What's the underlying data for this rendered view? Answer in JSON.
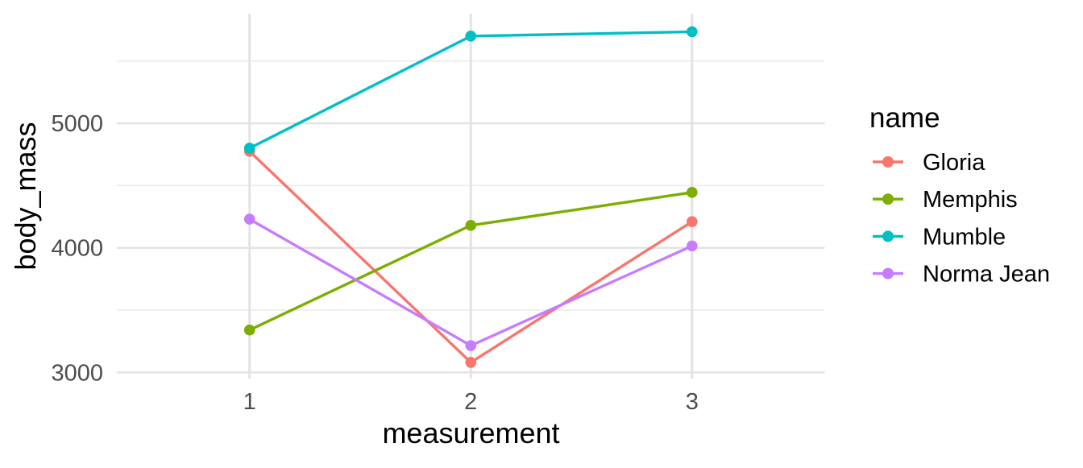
{
  "chart_data": {
    "type": "line",
    "title": "",
    "xlabel": "measurement",
    "ylabel": "body_mass",
    "x_axis": {
      "label": "measurement",
      "categories": [
        "1",
        "2",
        "3"
      ]
    },
    "y_axis": {
      "label": "body_mass",
      "tick_labels": [
        "3000",
        "4000",
        "5000"
      ],
      "tick_values": [
        3000,
        4000,
        5000
      ],
      "minor_tick_values": [
        3500,
        4500,
        5500
      ],
      "ylim": [
        2950,
        5880
      ]
    },
    "legend": {
      "title": "name",
      "position": "right"
    },
    "series": [
      {
        "name": "Gloria",
        "color": "#F8766D",
        "values": [
          4775,
          3080,
          4210
        ]
      },
      {
        "name": "Memphis",
        "color": "#7CAE00",
        "values": [
          3340,
          4180,
          4445
        ]
      },
      {
        "name": "Mumble",
        "color": "#00BFC4",
        "values": [
          4800,
          5700,
          5735
        ]
      },
      {
        "name": "Norma Jean",
        "color": "#C77CFF",
        "values": [
          4230,
          3215,
          4015
        ]
      }
    ],
    "grid": {
      "show": true,
      "major_color": "#E3E3E3",
      "minor_color": "#ECECEC"
    },
    "theme": {
      "background": "#FFFFFF",
      "axis_text_color": "#4D4D4D",
      "title_color": "#000000"
    }
  }
}
